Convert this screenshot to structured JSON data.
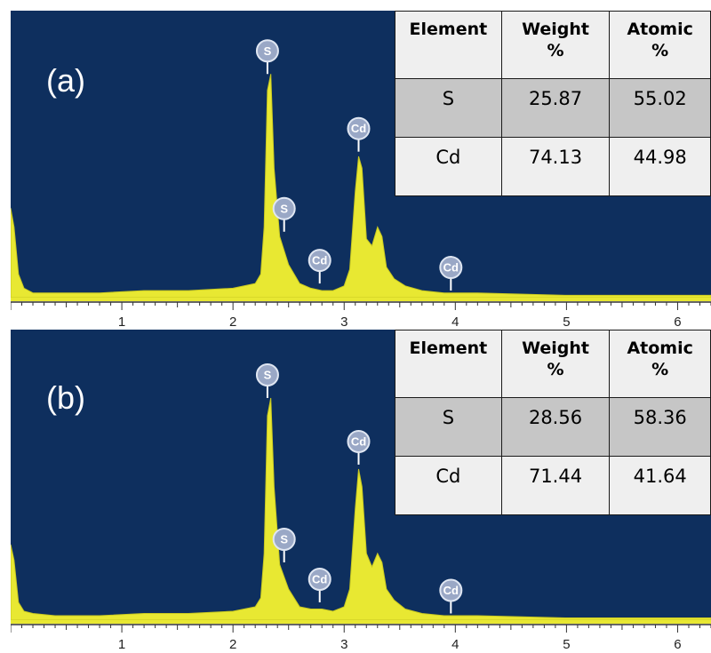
{
  "colors": {
    "background": "#0e2f5e",
    "spectrum": "#e8e832",
    "axis_band": "#ffffff",
    "marker": "#9aa8c6",
    "table_header": "#efefef",
    "table_row_shaded": "#c6c6c6",
    "table_row_light": "#efefef"
  },
  "icons": {
    "peak_marker": "circle-badge"
  },
  "panels": [
    {
      "label": "(a)",
      "table": {
        "headers": [
          "Element",
          "Weight\n%",
          "Atomic\n%"
        ],
        "rows": [
          [
            "S",
            "25.87",
            "55.02"
          ],
          [
            "Cd",
            "74.13",
            "44.98"
          ]
        ]
      }
    },
    {
      "label": "(b)",
      "table": {
        "headers": [
          "Element",
          "Weight\n%",
          "Atomic\n%"
        ],
        "rows": [
          [
            "S",
            "28.56",
            "58.36"
          ],
          [
            "Cd",
            "71.44",
            "41.64"
          ]
        ]
      }
    }
  ],
  "chart_data": [
    {
      "type": "area",
      "title": "",
      "xlabel": "",
      "ylabel": "",
      "xlim": [
        0,
        6.3
      ],
      "ylim": [
        0,
        1.0
      ],
      "xticks": [
        1,
        2,
        3,
        4,
        5,
        6
      ],
      "x": [
        0.0,
        0.03,
        0.07,
        0.12,
        0.2,
        0.4,
        0.8,
        1.2,
        1.6,
        2.0,
        2.1,
        2.2,
        2.25,
        2.28,
        2.31,
        2.34,
        2.37,
        2.42,
        2.5,
        2.6,
        2.7,
        2.8,
        2.9,
        3.0,
        3.05,
        3.1,
        3.13,
        3.16,
        3.2,
        3.25,
        3.3,
        3.34,
        3.38,
        3.45,
        3.55,
        3.7,
        3.9,
        4.2,
        5.0,
        6.3
      ],
      "y": [
        0.38,
        0.3,
        0.1,
        0.04,
        0.02,
        0.02,
        0.02,
        0.03,
        0.03,
        0.04,
        0.05,
        0.06,
        0.1,
        0.3,
        0.88,
        0.95,
        0.55,
        0.26,
        0.14,
        0.06,
        0.04,
        0.03,
        0.03,
        0.05,
        0.12,
        0.45,
        0.6,
        0.55,
        0.25,
        0.22,
        0.3,
        0.26,
        0.13,
        0.08,
        0.05,
        0.03,
        0.02,
        0.02,
        0.01,
        0.01
      ],
      "peaks": [
        {
          "element": "S",
          "x": 2.31,
          "y": 0.95
        },
        {
          "element": "S",
          "x": 2.46,
          "y": 0.28
        },
        {
          "element": "Cd",
          "x": 2.78,
          "y": 0.06
        },
        {
          "element": "Cd",
          "x": 3.13,
          "y": 0.62
        },
        {
          "element": "Cd",
          "x": 3.96,
          "y": 0.03
        }
      ]
    },
    {
      "type": "area",
      "title": "",
      "xlabel": "",
      "ylabel": "",
      "xlim": [
        0,
        6.3
      ],
      "ylim": [
        0,
        1.0
      ],
      "xticks": [
        1,
        2,
        3,
        4,
        5,
        6
      ],
      "x": [
        0.0,
        0.03,
        0.07,
        0.12,
        0.2,
        0.4,
        0.8,
        1.2,
        1.6,
        2.0,
        2.1,
        2.2,
        2.25,
        2.28,
        2.31,
        2.34,
        2.37,
        2.42,
        2.5,
        2.6,
        2.7,
        2.8,
        2.9,
        3.0,
        3.05,
        3.1,
        3.13,
        3.16,
        3.2,
        3.25,
        3.3,
        3.34,
        3.38,
        3.45,
        3.55,
        3.7,
        3.9,
        4.2,
        5.0,
        6.3
      ],
      "y": [
        0.34,
        0.27,
        0.08,
        0.04,
        0.03,
        0.02,
        0.02,
        0.03,
        0.03,
        0.04,
        0.05,
        0.06,
        0.1,
        0.3,
        0.92,
        1.0,
        0.6,
        0.25,
        0.14,
        0.06,
        0.05,
        0.05,
        0.04,
        0.06,
        0.14,
        0.5,
        0.68,
        0.6,
        0.3,
        0.24,
        0.3,
        0.26,
        0.14,
        0.09,
        0.05,
        0.03,
        0.02,
        0.02,
        0.01,
        0.01
      ],
      "peaks": [
        {
          "element": "S",
          "x": 2.31,
          "y": 1.0
        },
        {
          "element": "S",
          "x": 2.46,
          "y": 0.26
        },
        {
          "element": "Cd",
          "x": 2.78,
          "y": 0.08
        },
        {
          "element": "Cd",
          "x": 3.13,
          "y": 0.7
        },
        {
          "element": "Cd",
          "x": 3.96,
          "y": 0.03
        }
      ]
    }
  ]
}
